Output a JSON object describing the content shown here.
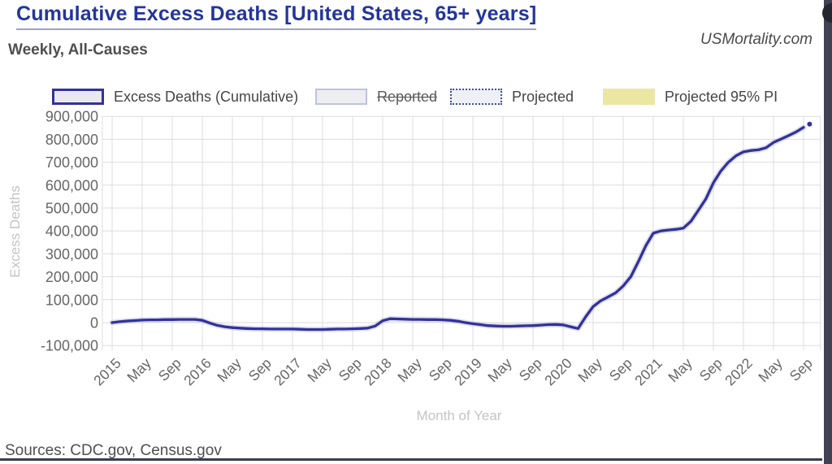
{
  "header": {
    "title": "Cumulative Excess Deaths [United States, 65+ years]",
    "subtitle": "Weekly, All-Causes",
    "watermark": "USMortality.com"
  },
  "legend": {
    "items": [
      {
        "label": "Excess Deaths (Cumulative)",
        "swatch": "cumulative-line-box",
        "active": true
      },
      {
        "label": "Reported",
        "swatch": "reported-box",
        "active": false
      },
      {
        "label": "Projected",
        "swatch": "projected-dotted-box",
        "active": true
      },
      {
        "label": "Projected 95% PI",
        "swatch": "pi-yellow-box",
        "active": true
      }
    ]
  },
  "chart_data": {
    "type": "line",
    "title": "Cumulative Excess Deaths [United States, 65+ years]",
    "xlabel": "Month of Year",
    "ylabel": "Excess Deaths",
    "ylim": [
      -100000,
      900000
    ],
    "grid": true,
    "legend_position": "top",
    "line_color": "#32329b",
    "y_ticks": [
      {
        "value": 900000,
        "label": "900,000"
      },
      {
        "value": 800000,
        "label": "800,000"
      },
      {
        "value": 700000,
        "label": "700,000"
      },
      {
        "value": 600000,
        "label": "600,000"
      },
      {
        "value": 500000,
        "label": "500,000"
      },
      {
        "value": 400000,
        "label": "400,000"
      },
      {
        "value": 300000,
        "label": "300,000"
      },
      {
        "value": 200000,
        "label": "200,000"
      },
      {
        "value": 100000,
        "label": "100,000"
      },
      {
        "value": 0,
        "label": "0"
      },
      {
        "value": -100000,
        "label": "-100,000"
      }
    ],
    "x_ticks": [
      {
        "month_index": 0,
        "label": "2015"
      },
      {
        "month_index": 4,
        "label": "May"
      },
      {
        "month_index": 8,
        "label": "Sep"
      },
      {
        "month_index": 12,
        "label": "2016"
      },
      {
        "month_index": 16,
        "label": "May"
      },
      {
        "month_index": 20,
        "label": "Sep"
      },
      {
        "month_index": 24,
        "label": "2017"
      },
      {
        "month_index": 28,
        "label": "May"
      },
      {
        "month_index": 32,
        "label": "Sep"
      },
      {
        "month_index": 36,
        "label": "2018"
      },
      {
        "month_index": 40,
        "label": "May"
      },
      {
        "month_index": 44,
        "label": "Sep"
      },
      {
        "month_index": 48,
        "label": "2019"
      },
      {
        "month_index": 52,
        "label": "May"
      },
      {
        "month_index": 56,
        "label": "Sep"
      },
      {
        "month_index": 60,
        "label": "2020"
      },
      {
        "month_index": 64,
        "label": "May"
      },
      {
        "month_index": 68,
        "label": "Sep"
      },
      {
        "month_index": 72,
        "label": "2021"
      },
      {
        "month_index": 76,
        "label": "May"
      },
      {
        "month_index": 80,
        "label": "Sep"
      },
      {
        "month_index": 84,
        "label": "2022"
      },
      {
        "month_index": 88,
        "label": "May"
      },
      {
        "month_index": 92,
        "label": "Sep"
      }
    ],
    "series": [
      {
        "name": "Excess Deaths (Cumulative)",
        "color": "#32329b",
        "start_month": "2015-01",
        "values_monthly": [
          0,
          4000,
          7000,
          9000,
          11000,
          12000,
          12000,
          13000,
          13000,
          14000,
          14000,
          14000,
          10000,
          -2000,
          -12000,
          -18000,
          -22000,
          -24000,
          -26000,
          -27000,
          -27000,
          -28000,
          -28000,
          -28000,
          -28000,
          -29000,
          -30000,
          -30000,
          -30000,
          -29000,
          -28000,
          -28000,
          -27000,
          -26000,
          -24000,
          -15000,
          8000,
          17000,
          16000,
          15000,
          14000,
          14000,
          13000,
          13000,
          12000,
          10000,
          6000,
          0,
          -5000,
          -9000,
          -13000,
          -15000,
          -16000,
          -16000,
          -15000,
          -14000,
          -13000,
          -11000,
          -9000,
          -8000,
          -10000,
          -18000,
          -26000,
          25000,
          70000,
          95000,
          112000,
          130000,
          160000,
          200000,
          265000,
          335000,
          390000,
          400000,
          404000,
          407000,
          412000,
          442000,
          490000,
          540000,
          610000,
          662000,
          700000,
          728000,
          745000,
          751000,
          754000,
          763000,
          786000,
          801000,
          816000,
          832000,
          852000
        ]
      }
    ],
    "projected_last_point": {
      "month_index": 92.8,
      "value": 866000
    }
  },
  "footer": {
    "sources": "Sources: CDC.gov, Census.gov"
  }
}
